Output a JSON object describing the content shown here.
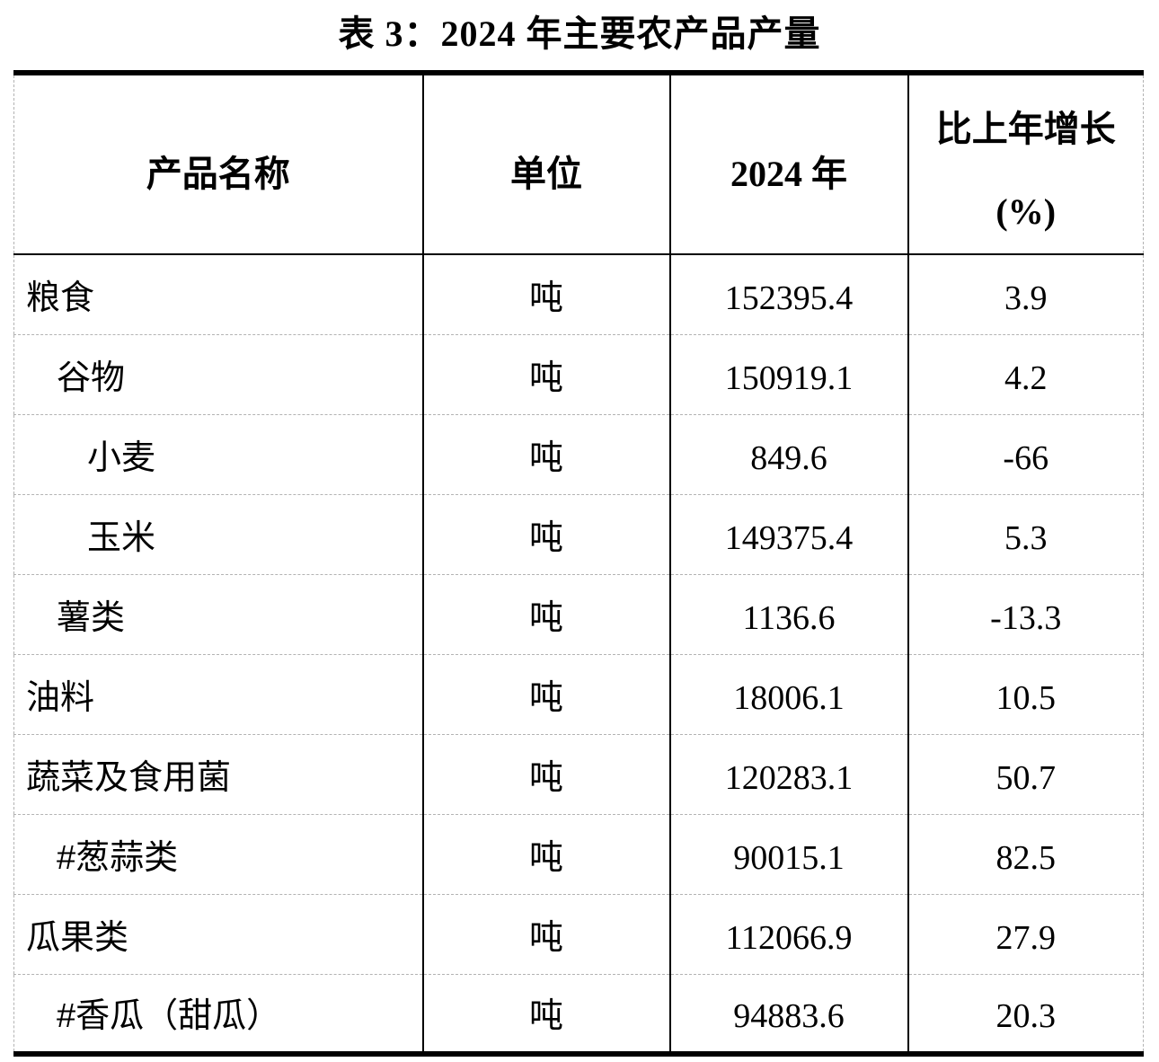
{
  "page": {
    "background": "#ffffff"
  },
  "title": "表 3：2024 年主要农产品产量",
  "table": {
    "style": {
      "solid_border_color": "#000000",
      "dashed_border_color": "#b3b3b3",
      "text_color": "#000000"
    },
    "header": {
      "product_name": "产品名称",
      "unit": "单位",
      "year": "2024 年",
      "growth_line1": "比上年增长",
      "growth_line2": "(%)"
    },
    "rows": [
      {
        "name": "粮食",
        "indent": 0,
        "unit": "吨",
        "value_2024": "152395.4",
        "growth_pct": "3.9"
      },
      {
        "name": "谷物",
        "indent": 1,
        "unit": "吨",
        "value_2024": "150919.1",
        "growth_pct": "4.2"
      },
      {
        "name": "小麦",
        "indent": 2,
        "unit": "吨",
        "value_2024": "849.6",
        "growth_pct": "-66"
      },
      {
        "name": "玉米",
        "indent": 2,
        "unit": "吨",
        "value_2024": "149375.4",
        "growth_pct": "5.3"
      },
      {
        "name": "薯类",
        "indent": 1,
        "unit": "吨",
        "value_2024": "1136.6",
        "growth_pct": "-13.3"
      },
      {
        "name": "油料",
        "indent": 0,
        "unit": "吨",
        "value_2024": "18006.1",
        "growth_pct": "10.5"
      },
      {
        "name": "蔬菜及食用菌",
        "indent": 0,
        "unit": "吨",
        "value_2024": "120283.1",
        "growth_pct": "50.7"
      },
      {
        "name": "#葱蒜类",
        "indent": 1,
        "unit": "吨",
        "value_2024": "90015.1",
        "growth_pct": "82.5"
      },
      {
        "name": "瓜果类",
        "indent": 0,
        "unit": "吨",
        "value_2024": "112066.9",
        "growth_pct": "27.9"
      },
      {
        "name": "#香瓜（甜瓜）",
        "indent": 1,
        "unit": "吨",
        "value_2024": "94883.6",
        "growth_pct": "20.3"
      }
    ]
  }
}
